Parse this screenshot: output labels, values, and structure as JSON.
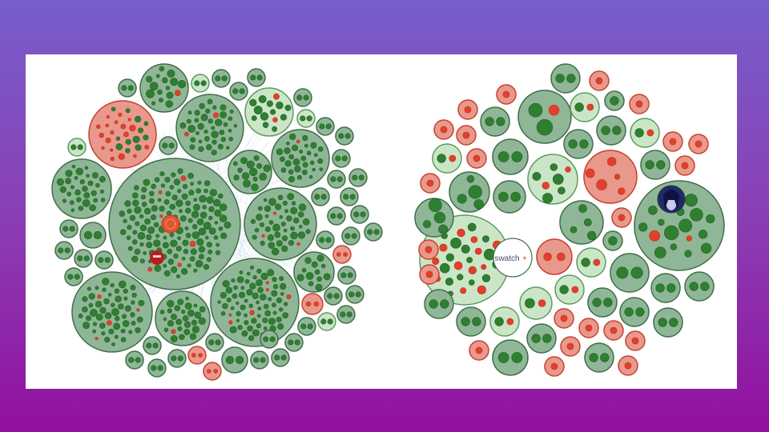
{
  "colors": {
    "green_fill": "#8fb797",
    "green_stroke": "#3f6e48",
    "light_fill": "#cbe6c6",
    "light_stroke": "#5e9a62",
    "red_fill": "#e8998c",
    "red_stroke": "#c8412f",
    "dot_green": "#2f7f30",
    "dot_red": "#e2402a",
    "link": "#b7d0e0"
  },
  "left_diagram": {
    "embedded_logos": [
      "logo-ring",
      "logo-badge"
    ],
    "clusters": [
      {
        "kind": "green",
        "dots": 150,
        "red": 6
      },
      {
        "kind": "green",
        "dots": 40,
        "red": 2
      },
      {
        "kind": "green",
        "dots": 16,
        "red": 1
      },
      {
        "kind": "red",
        "dots": 30,
        "red": 18
      },
      {
        "kind": "light",
        "dots": 14,
        "red": 2
      },
      {
        "kind": "green",
        "dots": 30,
        "red": 1
      },
      {
        "kind": "green",
        "dots": 14,
        "red": 0
      },
      {
        "kind": "green",
        "dots": 30,
        "red": 0
      },
      {
        "kind": "green",
        "dots": 45,
        "red": 3
      },
      {
        "kind": "green",
        "dots": 55,
        "red": 4
      },
      {
        "kind": "green",
        "dots": 28,
        "red": 1
      },
      {
        "kind": "green",
        "dots": 75,
        "red": 6
      },
      {
        "kind": "green",
        "dots": 12,
        "red": 0
      }
    ],
    "small": [
      "green",
      "light",
      "green",
      "green",
      "green",
      "green",
      "light",
      "green",
      "green",
      "light",
      "green",
      "green",
      "green",
      "green",
      "green",
      "green",
      "green",
      "green",
      "green",
      "green",
      "green",
      "green",
      "green",
      "green",
      "green",
      "green",
      "red",
      "green",
      "green",
      "red",
      "green",
      "green",
      "green",
      "light",
      "green",
      "green",
      "green",
      "green",
      "green",
      "green",
      "green",
      "red",
      "red",
      "green",
      "green",
      "green",
      "green"
    ]
  },
  "right_diagram": {
    "logo_text": "swatch",
    "logo_mark": "+",
    "avatar": "avatar-photo",
    "clusters": [
      {
        "kind": "light",
        "dots": 28,
        "red": 12
      },
      {
        "kind": "green",
        "dots": 18,
        "red": 3
      },
      {
        "kind": "red",
        "dots": 5,
        "red": 5
      },
      {
        "kind": "green",
        "dots": 3,
        "red": 1
      },
      {
        "kind": "light",
        "dots": 7,
        "red": 2
      },
      {
        "kind": "green",
        "dots": 4,
        "red": 0
      },
      {
        "kind": "green",
        "dots": 4,
        "red": 0
      },
      {
        "kind": "green",
        "dots": 4,
        "red": 0
      }
    ],
    "small": [
      "green",
      "red",
      "red",
      "red",
      "green",
      "light",
      "green",
      "red",
      "red",
      "red",
      "green",
      "light",
      "red",
      "red",
      "green",
      "light",
      "red",
      "green",
      "red",
      "green",
      "red",
      "red",
      "green",
      "red",
      "red",
      "green",
      "red",
      "light",
      "green",
      "green",
      "green",
      "light",
      "light",
      "green",
      "green",
      "green",
      "green",
      "red",
      "green",
      "light",
      "green",
      "red",
      "red",
      "red",
      "red",
      "green",
      "red",
      "green",
      "red",
      "red"
    ]
  }
}
